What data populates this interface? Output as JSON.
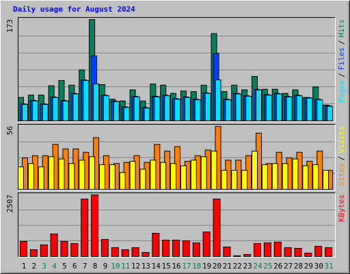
{
  "chart_data": [
    {
      "type": "bar",
      "title": "Daily usage for August 2024",
      "title_color": "#0000ff",
      "ylim": [
        0,
        173
      ],
      "yticks": [
        173
      ],
      "legend_separator": "/",
      "series": [
        {
          "name": "Pages",
          "color": "#00e0ff",
          "values": [
            28,
            34,
            28,
            40,
            34,
            46,
            69,
            63,
            43,
            33,
            23,
            41,
            22,
            41,
            43,
            37,
            40,
            36,
            47,
            70,
            36,
            46,
            42,
            53,
            44,
            46,
            41,
            43,
            39,
            36,
            25
          ]
        },
        {
          "name": "Files",
          "color": "#0040ff",
          "values": [
            29,
            35,
            29,
            41,
            35,
            47,
            70,
            111,
            44,
            34,
            24,
            42,
            23,
            42,
            44,
            38,
            41,
            37,
            48,
            115,
            37,
            47,
            43,
            54,
            45,
            47,
            42,
            44,
            40,
            37,
            26
          ]
        },
        {
          "name": "Hits",
          "color": "#00805c",
          "values": [
            40,
            44,
            44,
            60,
            69,
            61,
            87,
            173,
            62,
            37,
            34,
            53,
            34,
            63,
            61,
            47,
            51,
            50,
            61,
            149,
            50,
            61,
            53,
            76,
            54,
            54,
            47,
            53,
            40,
            58,
            27
          ]
        }
      ]
    },
    {
      "type": "bar",
      "ylim": [
        0,
        56
      ],
      "yticks": [
        56
      ],
      "legend_separator": "/",
      "series": [
        {
          "name": "Sites",
          "color": "#ff8000",
          "values": [
            28,
            30,
            30,
            40,
            36,
            36,
            33,
            46,
            30,
            23,
            24,
            30,
            24,
            40,
            34,
            38,
            25,
            30,
            35,
            56,
            26,
            26,
            30,
            50,
            23,
            33,
            28,
            33,
            25,
            34,
            17
          ]
        },
        {
          "name": "Visits",
          "color": "#ffff00",
          "values": [
            20,
            23,
            20,
            29,
            27,
            23,
            26,
            29,
            22,
            22,
            15,
            25,
            18,
            26,
            24,
            23,
            21,
            26,
            29,
            34,
            17,
            17,
            17,
            34,
            22,
            23,
            23,
            27,
            21,
            22,
            17
          ]
        }
      ]
    },
    {
      "type": "bar",
      "ylim": [
        0,
        2507
      ],
      "yticks": [
        2507
      ],
      "categories": [
        "1",
        "2",
        "3",
        "4",
        "5",
        "6",
        "7",
        "8",
        "9",
        "10",
        "11",
        "12",
        "13",
        "14",
        "15",
        "16",
        "17",
        "18",
        "19",
        "20",
        "21",
        "22",
        "23",
        "24",
        "25",
        "26",
        "27",
        "28",
        "29",
        "30",
        "31"
      ],
      "category_colors": [
        "#000000",
        "#000000",
        "#00805c",
        "#00805c",
        "#000000",
        "#000000",
        "#000000",
        "#000000",
        "#000000",
        "#00805c",
        "#00805c",
        "#000000",
        "#000000",
        "#000000",
        "#000000",
        "#000000",
        "#00805c",
        "#00805c",
        "#000000",
        "#000000",
        "#000000",
        "#000000",
        "#000000",
        "#00805c",
        "#00805c",
        "#000000",
        "#000000",
        "#000000",
        "#000000",
        "#000000",
        "#00805c"
      ],
      "series": [
        {
          "name": "KBytes",
          "color": "#ff0000",
          "values": [
            613,
            279,
            474,
            919,
            613,
            529,
            2340,
            2507,
            696,
            362,
            279,
            362,
            167,
            947,
            669,
            669,
            641,
            557,
            1003,
            2340,
            390,
            30,
            84,
            529,
            557,
            585,
            362,
            334,
            139,
            418,
            362
          ]
        }
      ]
    }
  ]
}
